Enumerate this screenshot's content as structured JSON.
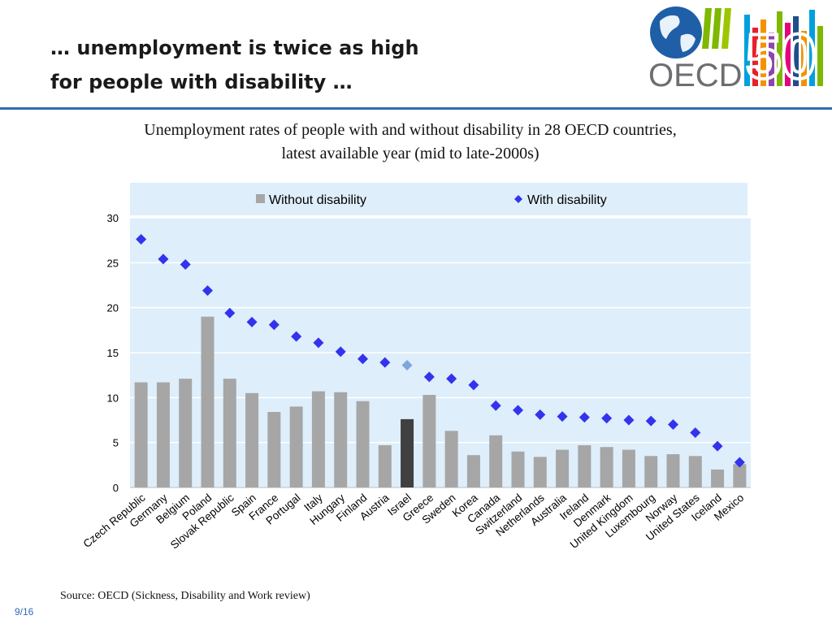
{
  "slide": {
    "title_line1": "… unemployment is twice as high",
    "title_line2": "for people with disability …",
    "source": "Source: OECD (Sickness, Disability and Work review)",
    "page": "9/16"
  },
  "logo": {
    "text": "OECD",
    "anniversary": "50",
    "colors": [
      "#1f4e8c",
      "#7fb800",
      "#e8202a",
      "#f39200",
      "#00a0de",
      "#8e44ad",
      "#e5007d",
      "#7f7f7f"
    ]
  },
  "chart_data": {
    "type": "bar",
    "title": "Unemployment rates of people with and without disability in 28 OECD countries,",
    "subtitle": "latest available year (mid to late-2000s)",
    "xlabel": "",
    "ylabel": "",
    "ylim": [
      0,
      30
    ],
    "yticks": [
      0,
      5,
      10,
      15,
      20,
      25,
      30
    ],
    "grid": true,
    "legend": "top",
    "categories": [
      "Czech Republic",
      "Germany",
      "Belgium",
      "Poland",
      "Slovak Republic",
      "Spain",
      "France",
      "Portugal",
      "Italy",
      "Hungary",
      "Finland",
      "Austria",
      "Israel",
      "Greece",
      "Sweden",
      "Korea",
      "Canada",
      "Switzerland",
      "Netherlands",
      "Australia",
      "Ireland",
      "Denmark",
      "United Kingdom",
      "Luxembourg",
      "Norway",
      "United States",
      "Iceland",
      "Mexico"
    ],
    "series": [
      {
        "name": "Without disability",
        "kind": "bar",
        "color": "#a6a6a6",
        "highlight_index": 12,
        "highlight_color": "#404040",
        "values": [
          11.7,
          11.7,
          12.1,
          19.0,
          12.1,
          10.5,
          8.4,
          9.0,
          10.7,
          10.6,
          9.6,
          4.7,
          7.6,
          10.3,
          6.3,
          3.6,
          5.8,
          4.0,
          3.4,
          4.2,
          4.7,
          4.5,
          4.2,
          3.5,
          3.7,
          3.5,
          2.0,
          2.6
        ]
      },
      {
        "name": "With disability",
        "kind": "marker",
        "color": "#3333ee",
        "highlight_index": 12,
        "highlight_color": "#7ea6d8",
        "values": [
          27.6,
          25.4,
          24.8,
          21.9,
          19.4,
          18.4,
          18.1,
          16.8,
          16.1,
          15.1,
          14.3,
          13.9,
          13.6,
          12.3,
          12.1,
          11.4,
          9.1,
          8.6,
          8.1,
          7.9,
          7.8,
          7.7,
          7.5,
          7.4,
          7.0,
          6.1,
          4.6,
          2.8
        ]
      }
    ],
    "colors": {
      "plot_background": "#deeefb",
      "grid": "#ffffff",
      "axis_text": "#000000"
    }
  }
}
